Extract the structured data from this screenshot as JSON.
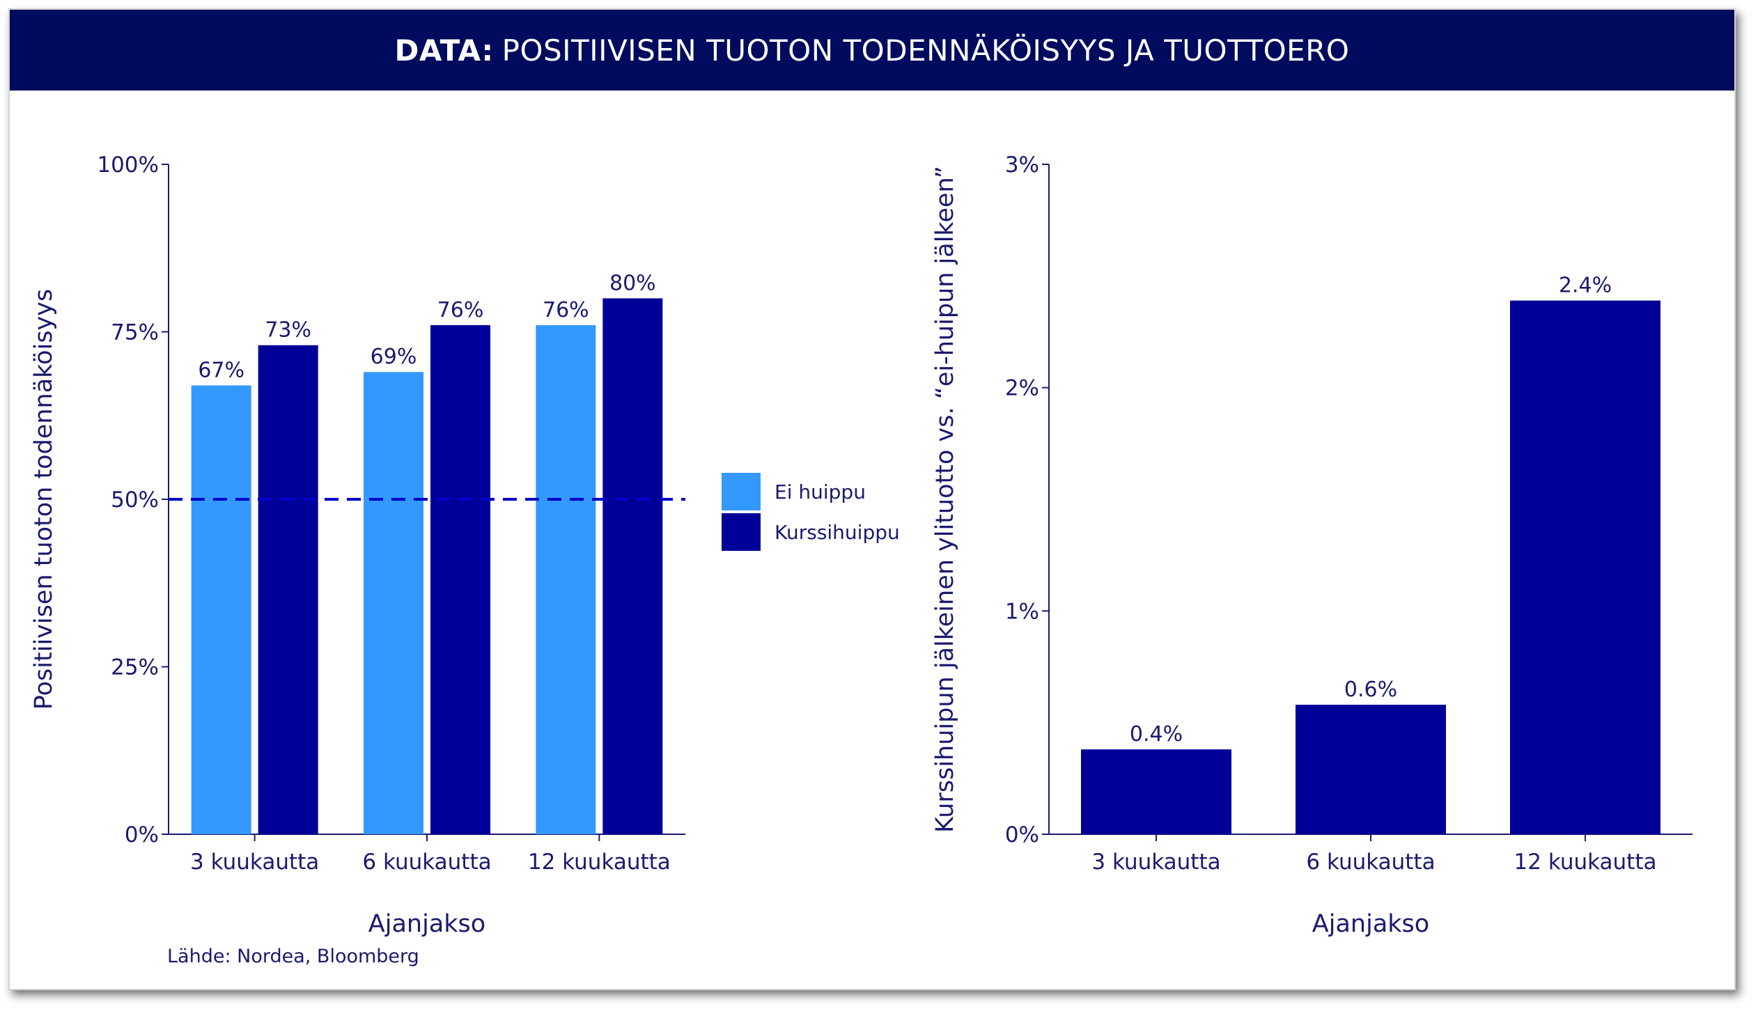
{
  "header": {
    "bold": "DATA:",
    "rest": "POSITIIVISEN TUOTON TODENNÄKÖISYYS JA TUOTTOERO"
  },
  "source": "Lähde: Nordea, Bloomberg",
  "colors": {
    "header_bg": "#000b5e",
    "light": "#3399ff",
    "dark": "#000099",
    "axis_text": "#1a1a6e",
    "dashed": "#0000cc"
  },
  "chart_data": [
    {
      "type": "bar",
      "categories": [
        "3 kuukautta",
        "6 kuukautta",
        "12 kuukautta"
      ],
      "series": [
        {
          "name": "Ei huippu",
          "values": [
            67,
            69,
            76
          ],
          "labels": [
            "67%",
            "69%",
            "76%"
          ],
          "color": "#3399ff"
        },
        {
          "name": "Kurssihuippu",
          "values": [
            73,
            76,
            80
          ],
          "labels": [
            "73%",
            "76%",
            "80%"
          ],
          "color": "#000099"
        }
      ],
      "xlabel": "Ajanjakso",
      "ylabel": "Positiivisen tuoton todennäköisyys",
      "ylim": [
        0,
        100
      ],
      "yticks": [
        0,
        25,
        50,
        75,
        100
      ],
      "ytick_labels": [
        "0%",
        "25%",
        "50%",
        "75%",
        "100%"
      ],
      "reference_line": {
        "value": 50,
        "style": "dashed"
      },
      "legend": "right",
      "grid": false
    },
    {
      "type": "bar",
      "categories": [
        "3 kuukautta",
        "6 kuukautta",
        "12 kuukautta"
      ],
      "series": [
        {
          "values": [
            0.38,
            0.58,
            2.39
          ],
          "labels": [
            "0.4%",
            "0.6%",
            "2.4%"
          ],
          "color": "#000099"
        }
      ],
      "xlabel": "Ajanjakso",
      "ylabel": "Kurssihuipun jälkeinen ylituotto vs. “ei-huipun jälkeen”",
      "ylim": [
        0,
        3
      ],
      "yticks": [
        0,
        1,
        2,
        3
      ],
      "ytick_labels": [
        "0%",
        "1%",
        "2%",
        "3%"
      ],
      "grid": false
    }
  ]
}
